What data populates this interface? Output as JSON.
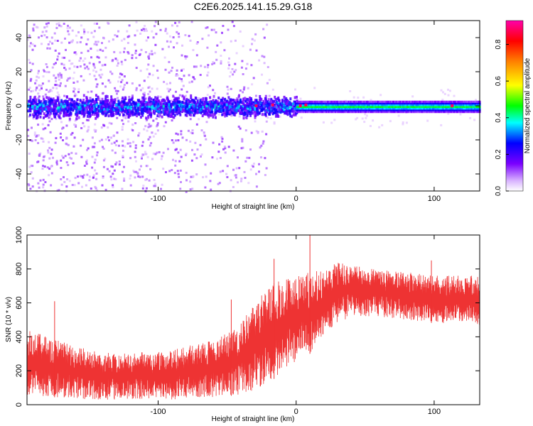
{
  "title": "C2E6.2025.141.15.29.G18",
  "chart_data": [
    {
      "type": "heatmap",
      "xlabel": "Height of straight line (km)",
      "ylabel": "Frequency (Hz)",
      "xlim": [
        -195,
        133
      ],
      "ylim": [
        -50,
        50
      ],
      "xticks": [
        {
          "v": -100,
          "label": "-100"
        },
        {
          "v": 0,
          "label": "0"
        },
        {
          "v": 100,
          "label": "100"
        }
      ],
      "yticks": [
        {
          "v": 40,
          "label": "40"
        },
        {
          "v": 20,
          "label": "20"
        },
        {
          "v": 0,
          "label": "0"
        },
        {
          "v": -20,
          "label": "-20"
        },
        {
          "v": -40,
          "label": "-40"
        }
      ],
      "colorbar": {
        "label": "Normalized spectral amplitude",
        "range": [
          0,
          0.93
        ],
        "ticks": [
          {
            "v": 0.0,
            "label": "0.0"
          },
          {
            "v": 0.2,
            "label": "0.2"
          },
          {
            "v": 0.4,
            "label": "0.4"
          },
          {
            "v": 0.6,
            "label": "0.6"
          },
          {
            "v": 0.8,
            "label": "0.8"
          }
        ],
        "colormap": "rainbow (white-violet-blue-cyan-green-yellow-red-magenta)"
      },
      "features": [
        {
          "description": "broad scattered low-amplitude spread",
          "x_range": [
            -195,
            -20
          ],
          "freq_halfwidth": 50,
          "amplitude": 0.1
        },
        {
          "description": "central band",
          "x_range": [
            -195,
            0
          ],
          "freq_center": 0,
          "freq_halfwidth": 6,
          "amplitude": 0.3
        },
        {
          "description": "narrow strong line",
          "x_range": [
            0,
            133
          ],
          "freq_center": 0,
          "freq_halfwidth": 3,
          "amplitude": 0.45
        }
      ]
    },
    {
      "type": "line",
      "xlabel": "Height of straight line (km)",
      "ylabel": "SNR (10 * v/v)",
      "xlim": [
        -195,
        133
      ],
      "ylim": [
        0,
        1000
      ],
      "color": "#ee3333",
      "xticks": [
        {
          "v": -100,
          "label": "-100"
        },
        {
          "v": 0,
          "label": "0"
        },
        {
          "v": 100,
          "label": "100"
        }
      ],
      "yticks": [
        {
          "v": 0,
          "label": "0"
        },
        {
          "v": 200,
          "label": "200"
        },
        {
          "v": 400,
          "label": "400"
        },
        {
          "v": 600,
          "label": "600"
        },
        {
          "v": 800,
          "label": "800"
        },
        {
          "v": 1000,
          "label": "1000"
        }
      ],
      "envelope": {
        "x": [
          -195,
          -170,
          -150,
          -130,
          -110,
          -90,
          -70,
          -50,
          -40,
          -30,
          -20,
          -10,
          0,
          10,
          20,
          30,
          40,
          60,
          80,
          100,
          120,
          133
        ],
        "lower": [
          60,
          40,
          30,
          30,
          30,
          30,
          40,
          50,
          60,
          80,
          120,
          200,
          250,
          300,
          420,
          480,
          520,
          520,
          500,
          480,
          480,
          470
        ],
        "upper": [
          450,
          380,
          320,
          300,
          310,
          330,
          360,
          420,
          480,
          600,
          720,
          750,
          760,
          780,
          800,
          840,
          820,
          800,
          780,
          760,
          760,
          760
        ]
      },
      "peaks": [
        {
          "x": -175,
          "y": 610
        },
        {
          "x": -47,
          "y": 620
        },
        {
          "x": -16,
          "y": 860
        },
        {
          "x": 10,
          "y": 1000
        },
        {
          "x": 98,
          "y": 850
        }
      ]
    }
  ]
}
